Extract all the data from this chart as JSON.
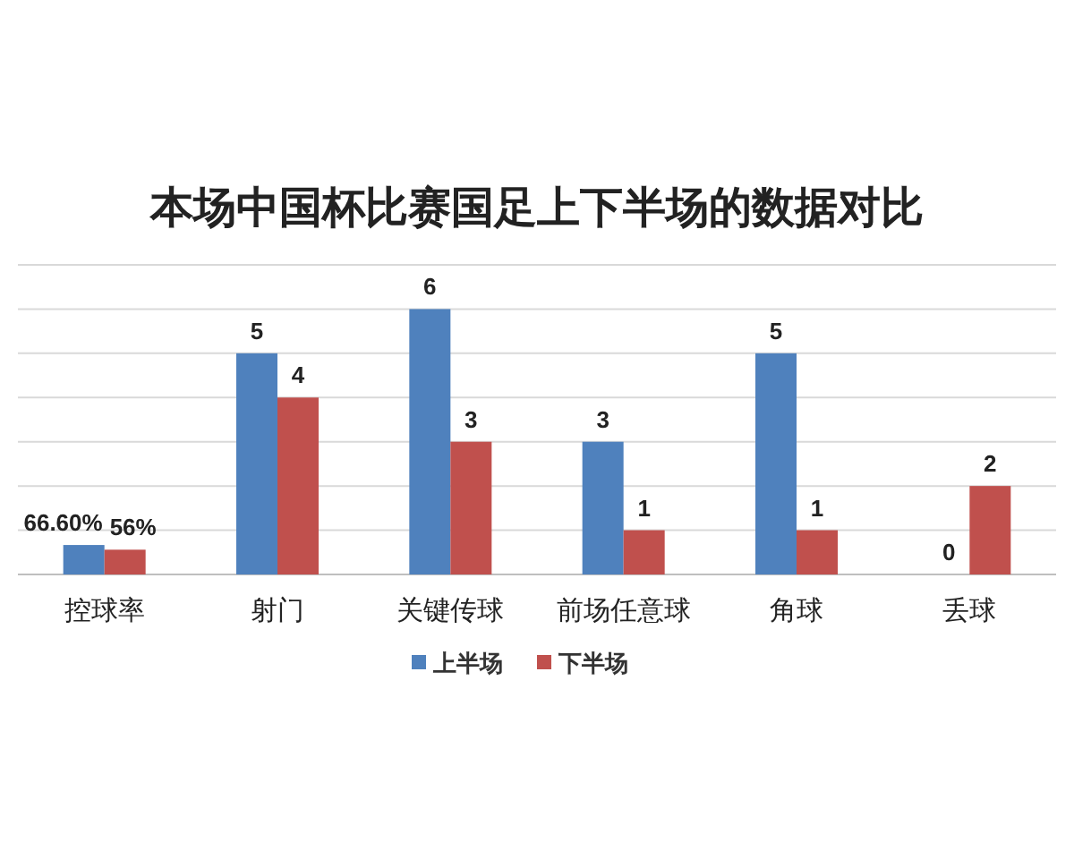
{
  "chart_data": {
    "type": "bar",
    "title": "本场中国杯比赛国足上下半场的数据对比",
    "categories": [
      "控球率",
      "射门",
      "关键传球",
      "前场任意球",
      "角球",
      "丢球"
    ],
    "series": [
      {
        "name": "上半场",
        "color": "#4f81bd",
        "values": [
          0.666,
          5,
          6,
          3,
          5,
          0
        ],
        "value_labels": [
          "66.60%",
          "5",
          "6",
          "3",
          "5",
          "0"
        ]
      },
      {
        "name": "下半场",
        "color": "#c0504d",
        "values": [
          0.56,
          4,
          3,
          1,
          1,
          2
        ],
        "value_labels": [
          "56%",
          "4",
          "3",
          "1",
          "1",
          "2"
        ]
      }
    ],
    "ylim": [
      0,
      7
    ],
    "yticks": [
      {
        "value": 0,
        "label": null
      },
      {
        "value": 1,
        "label": null
      },
      {
        "value": 2,
        "label": null
      },
      {
        "value": 3,
        "label": null
      },
      {
        "value": 4,
        "label": null
      },
      {
        "value": 5,
        "label": null
      },
      {
        "value": 6,
        "label": null
      },
      {
        "value": 7,
        "label": null
      }
    ],
    "tick_labels": "x",
    "grid": "y",
    "legend": "bottom"
  }
}
